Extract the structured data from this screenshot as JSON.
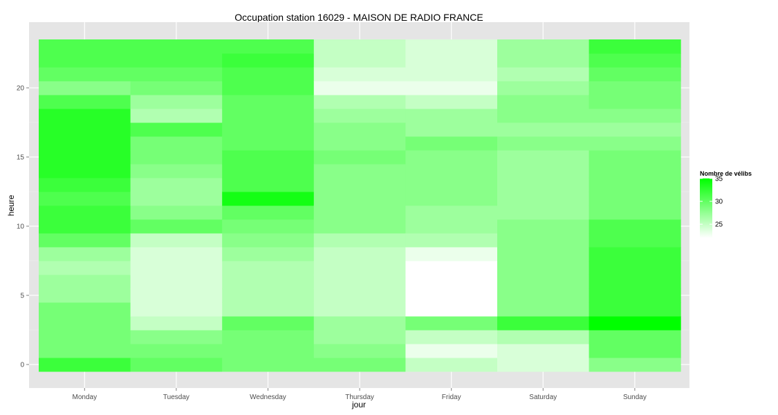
{
  "chart_data": {
    "type": "heatmap",
    "title": "Occupation station 16029 - MAISON DE RADIO FRANCE",
    "xlabel": "jour",
    "ylabel": "heure",
    "x": [
      "Monday",
      "Tuesday",
      "Wednesday",
      "Thursday",
      "Friday",
      "Saturday",
      "Sunday"
    ],
    "y": [
      0,
      1,
      2,
      3,
      4,
      5,
      6,
      7,
      8,
      9,
      10,
      11,
      12,
      13,
      14,
      15,
      16,
      17,
      18,
      19,
      20,
      21,
      22,
      23
    ],
    "ylim": [
      -0.5,
      23.5
    ],
    "y_ticks": [
      0,
      5,
      10,
      15,
      20
    ],
    "grid": true,
    "legend": {
      "title": "Nombre de vélibs",
      "placement": "right",
      "ticks": [
        25,
        30,
        35
      ],
      "range": [
        22,
        35
      ],
      "low_color": "#ffffff",
      "high_color": "#00ff00"
    },
    "values": [
      [
        32,
        29,
        29,
        29,
        29,
        27,
        27,
        26,
        27,
        30,
        32,
        32,
        31,
        32,
        33,
        33,
        33,
        33,
        33,
        31,
        28,
        30,
        31,
        31
      ],
      [
        30,
        29,
        28,
        25,
        24,
        24,
        24,
        24,
        24,
        25,
        30,
        28,
        27,
        27,
        28,
        29,
        29,
        31,
        26,
        27,
        29,
        30,
        31,
        31
      ],
      [
        29,
        29,
        29,
        30,
        26,
        26,
        26,
        26,
        27,
        28,
        29,
        30,
        34,
        31,
        31,
        31,
        30,
        30,
        30,
        30,
        31,
        31,
        32,
        31
      ],
      [
        29,
        28,
        27,
        27,
        25,
        25,
        25,
        25,
        25,
        26,
        28,
        28,
        28,
        28,
        28,
        29,
        28,
        28,
        27,
        26,
        23,
        24,
        25,
        25
      ],
      [
        25,
        23,
        25,
        29,
        22,
        22,
        22,
        22,
        23,
        26,
        27,
        27,
        28,
        28,
        28,
        28,
        29,
        27,
        27,
        25,
        23,
        24,
        24,
        24
      ],
      [
        24,
        24,
        26,
        32,
        28,
        28,
        28,
        28,
        28,
        28,
        28,
        27,
        27,
        27,
        27,
        27,
        28,
        27,
        28,
        28,
        27,
        26,
        27,
        27
      ],
      [
        28,
        30,
        30,
        36,
        32,
        32,
        32,
        32,
        32,
        31,
        31,
        29,
        29,
        29,
        29,
        29,
        28,
        27,
        28,
        29,
        29,
        30,
        31,
        32
      ]
    ]
  }
}
